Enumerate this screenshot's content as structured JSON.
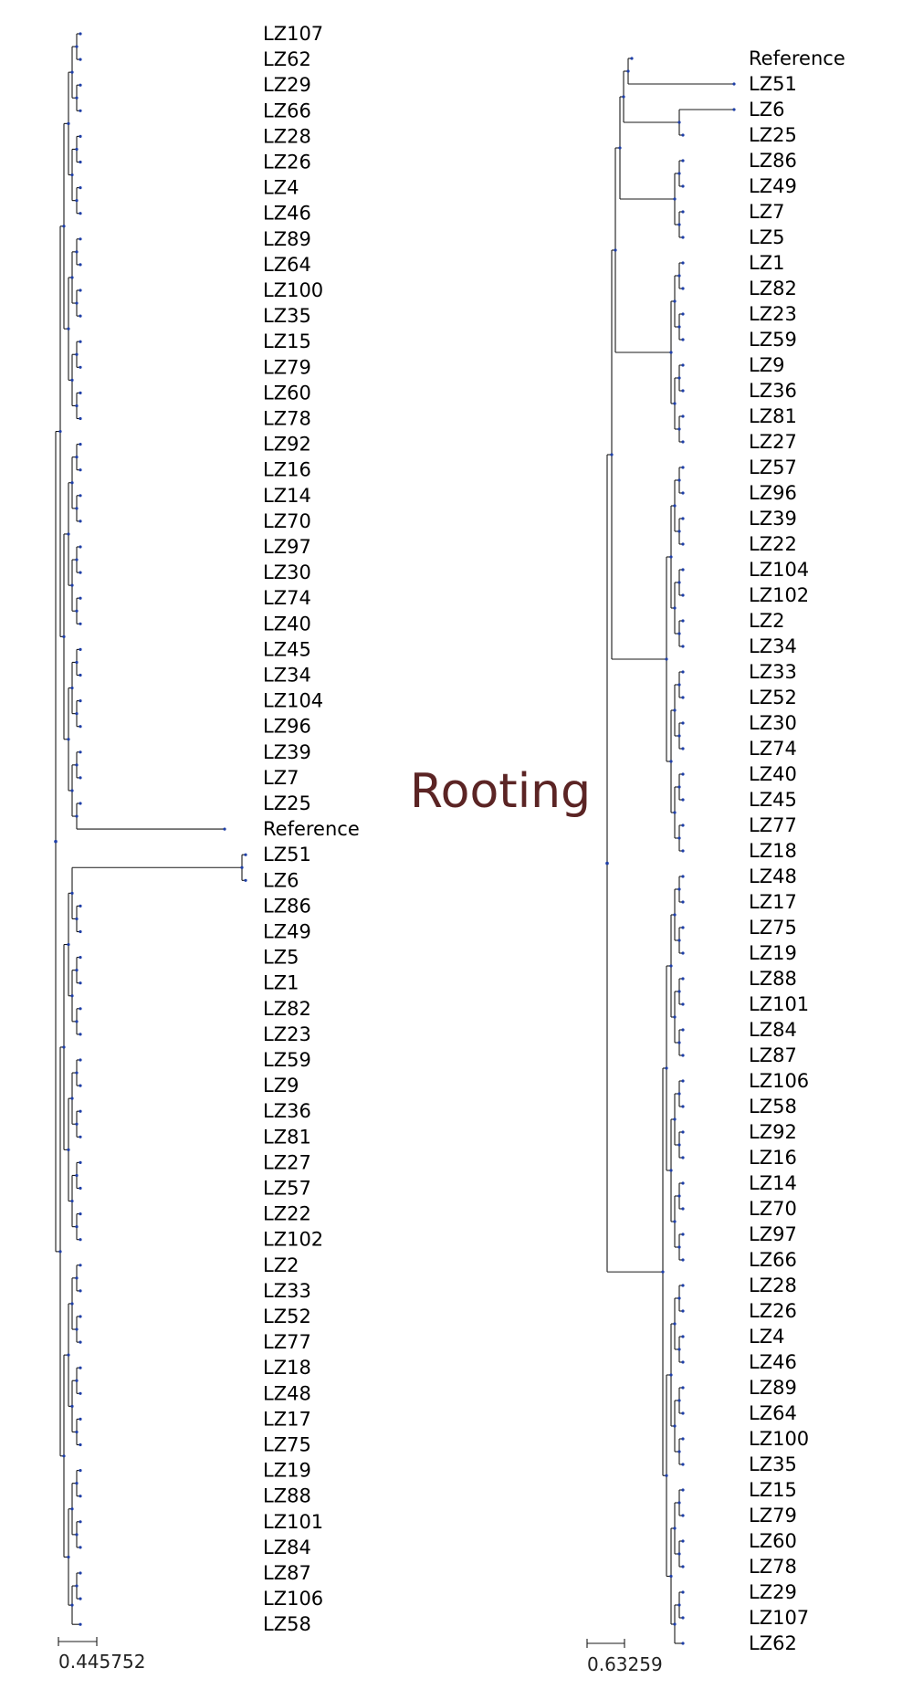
{
  "title": "Rooting",
  "left_tree": {
    "scale_label": "0.445752",
    "leaves": [
      "LZ107",
      "LZ62",
      "LZ29",
      "LZ66",
      "LZ28",
      "LZ26",
      "LZ4",
      "LZ46",
      "LZ89",
      "LZ64",
      "LZ100",
      "LZ35",
      "LZ15",
      "LZ79",
      "LZ60",
      "LZ78",
      "LZ92",
      "LZ16",
      "LZ14",
      "LZ70",
      "LZ97",
      "LZ30",
      "LZ74",
      "LZ40",
      "LZ45",
      "LZ34",
      "LZ104",
      "LZ96",
      "LZ39",
      "LZ7",
      "LZ25",
      "Reference",
      "LZ51",
      "LZ6",
      "LZ86",
      "LZ49",
      "LZ5",
      "LZ1",
      "LZ82",
      "LZ23",
      "LZ59",
      "LZ9",
      "LZ36",
      "LZ81",
      "LZ27",
      "LZ57",
      "LZ22",
      "LZ102",
      "LZ2",
      "LZ33",
      "LZ52",
      "LZ77",
      "LZ18",
      "LZ48",
      "LZ17",
      "LZ75",
      "LZ19",
      "LZ88",
      "LZ101",
      "LZ84",
      "LZ87",
      "LZ106",
      "LZ58"
    ]
  },
  "right_tree": {
    "scale_label": "0.63259",
    "leaves": [
      "Reference",
      "LZ51",
      "LZ6",
      "LZ25",
      "LZ86",
      "LZ49",
      "LZ7",
      "LZ5",
      "LZ1",
      "LZ82",
      "LZ23",
      "LZ59",
      "LZ9",
      "LZ36",
      "LZ81",
      "LZ27",
      "LZ57",
      "LZ96",
      "LZ39",
      "LZ22",
      "LZ104",
      "LZ102",
      "LZ2",
      "LZ34",
      "LZ33",
      "LZ52",
      "LZ30",
      "LZ74",
      "LZ40",
      "LZ45",
      "LZ77",
      "LZ18",
      "LZ48",
      "LZ17",
      "LZ75",
      "LZ19",
      "LZ88",
      "LZ101",
      "LZ84",
      "LZ87",
      "LZ106",
      "LZ58",
      "LZ92",
      "LZ16",
      "LZ14",
      "LZ70",
      "LZ97",
      "LZ66",
      "LZ28",
      "LZ26",
      "LZ4",
      "LZ46",
      "LZ89",
      "LZ64",
      "LZ100",
      "LZ35",
      "LZ15",
      "LZ79",
      "LZ60",
      "LZ78",
      "LZ29",
      "LZ107",
      "LZ62"
    ]
  },
  "colors": {
    "node": "#1f3fa8",
    "branch": "#1a1a1a",
    "title": "#5b2424"
  }
}
